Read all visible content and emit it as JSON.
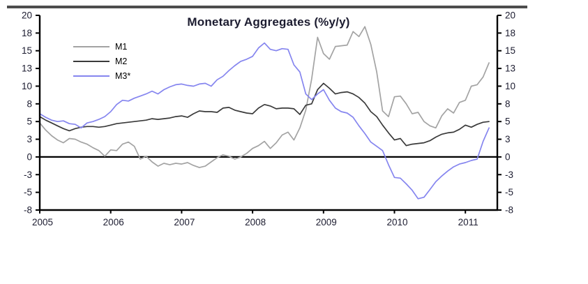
{
  "page": {
    "background": "#ffffff",
    "rule_color": "#4d4d4d",
    "text_color": "#1c1c30"
  },
  "chart_data": {
    "type": "line",
    "title": "Monetary Aggregates (%y/y)",
    "xlabel": "",
    "ylabel": "",
    "x_tick_labels": [
      "2005",
      "2006",
      "2007",
      "2008",
      "2009",
      "2010",
      "2011"
    ],
    "x_start_year": 2005,
    "points_per_year": 12,
    "x_range_note": "monthly data Jan 2005 - May 2011",
    "y_axis": {
      "sides": "both",
      "tick_values": [
        20,
        17.5,
        15,
        12.5,
        10,
        7.5,
        5,
        2.5,
        0,
        -2.5,
        -5,
        -7.5
      ],
      "tick_labels": [
        "20",
        "18",
        "15",
        "13",
        "10",
        "8",
        "5",
        "3",
        "0",
        "-3",
        "-5",
        "-8"
      ],
      "min": -7.5,
      "max": 20,
      "zero_line": true,
      "grid": false
    },
    "legend_position": "upper-left-inside",
    "series": [
      {
        "name": "M1",
        "color": "#a3a3a3",
        "values": [
          4.8,
          3.8,
          3.0,
          2.4,
          2.0,
          2.6,
          2.5,
          2.1,
          1.8,
          1.3,
          0.9,
          0.1,
          1.0,
          0.9,
          1.8,
          2.1,
          1.5,
          -0.3,
          0.1,
          -0.7,
          -1.3,
          -0.9,
          -1.1,
          -0.9,
          -1.0,
          -0.8,
          -1.2,
          -1.5,
          -1.3,
          -0.7,
          -0.1,
          0.3,
          0.1,
          -0.3,
          0.0,
          0.5,
          1.2,
          1.6,
          2.2,
          1.2,
          2.0,
          3.1,
          3.5,
          2.4,
          4.1,
          6.6,
          11.0,
          16.9,
          14.6,
          13.8,
          15.6,
          15.7,
          15.8,
          17.7,
          17.0,
          18.4,
          15.9,
          12.0,
          6.5,
          5.7,
          8.5,
          8.6,
          7.5,
          6.1,
          6.3,
          5.0,
          4.4,
          4.1,
          5.8,
          6.8,
          6.2,
          7.7,
          8.0,
          10.0,
          10.2,
          11.3,
          13.3
        ]
      },
      {
        "name": "M2",
        "color": "#3a3a3a",
        "values": [
          5.7,
          5.2,
          4.8,
          4.4,
          4.0,
          3.7,
          4.0,
          4.2,
          4.3,
          4.3,
          4.2,
          4.3,
          4.5,
          4.7,
          4.8,
          4.9,
          5.0,
          5.1,
          5.2,
          5.4,
          5.3,
          5.4,
          5.5,
          5.7,
          5.8,
          5.6,
          6.1,
          6.5,
          6.4,
          6.4,
          6.3,
          6.9,
          7.0,
          6.6,
          6.4,
          6.2,
          6.1,
          6.9,
          7.4,
          7.2,
          6.8,
          6.9,
          6.9,
          6.8,
          6.0,
          7.3,
          7.5,
          9.5,
          10.4,
          9.7,
          8.9,
          9.1,
          9.2,
          8.9,
          8.4,
          7.6,
          6.4,
          5.7,
          4.5,
          3.4,
          2.4,
          2.6,
          1.6,
          1.8,
          1.9,
          2.0,
          2.3,
          2.8,
          3.2,
          3.4,
          3.5,
          3.9,
          4.5,
          4.2,
          4.6,
          4.9,
          5.0
        ]
      },
      {
        "name": "M3*",
        "color": "#8585ef",
        "values": [
          6.1,
          5.6,
          5.2,
          5.0,
          5.1,
          4.7,
          4.6,
          4.1,
          4.8,
          5.0,
          5.3,
          5.7,
          6.4,
          7.4,
          8.0,
          7.9,
          8.3,
          8.6,
          8.9,
          9.3,
          8.9,
          9.5,
          9.9,
          10.2,
          10.3,
          10.1,
          10.0,
          10.3,
          10.4,
          10.0,
          10.9,
          11.4,
          12.2,
          12.9,
          13.5,
          13.8,
          14.2,
          15.4,
          16.1,
          15.2,
          15.0,
          15.3,
          15.2,
          13.0,
          12.0,
          8.9,
          8.1,
          8.9,
          9.5,
          8.0,
          6.9,
          6.4,
          6.2,
          5.6,
          4.4,
          3.3,
          2.1,
          1.5,
          0.9,
          -1.1,
          -2.9,
          -3.0,
          -3.8,
          -4.7,
          -5.9,
          -5.7,
          -4.6,
          -3.5,
          -2.7,
          -2.0,
          -1.4,
          -1.0,
          -0.8,
          -0.5,
          -0.3,
          2.2,
          4.1
        ]
      }
    ]
  }
}
